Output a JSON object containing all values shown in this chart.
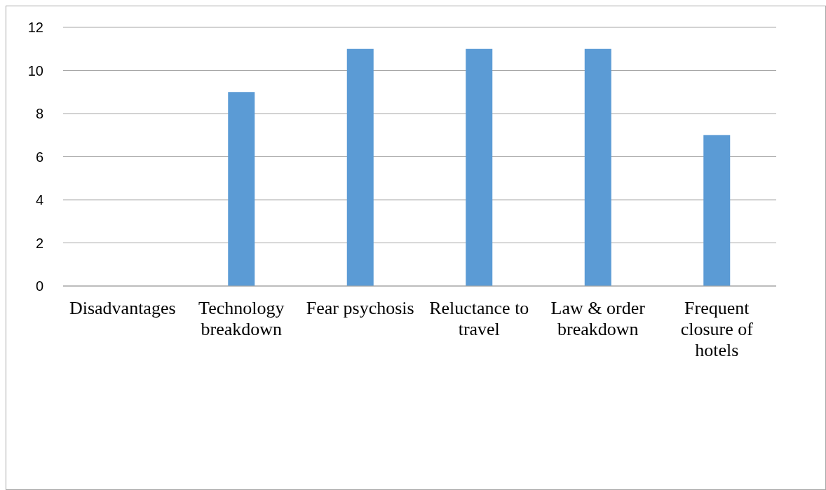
{
  "chart_data": {
    "type": "bar",
    "categories": [
      "Disadvantages",
      "Technology breakdown",
      "Fear psychosis",
      "Reluctance to travel",
      "Law & order breakdown",
      "Frequent closure of hotels"
    ],
    "values": [
      null,
      9,
      11,
      11,
      11,
      7
    ],
    "color": "#5b9bd5",
    "ylim": [
      0,
      12
    ],
    "yticks": [
      0,
      2,
      4,
      6,
      8,
      10,
      12
    ],
    "grid": "y"
  }
}
